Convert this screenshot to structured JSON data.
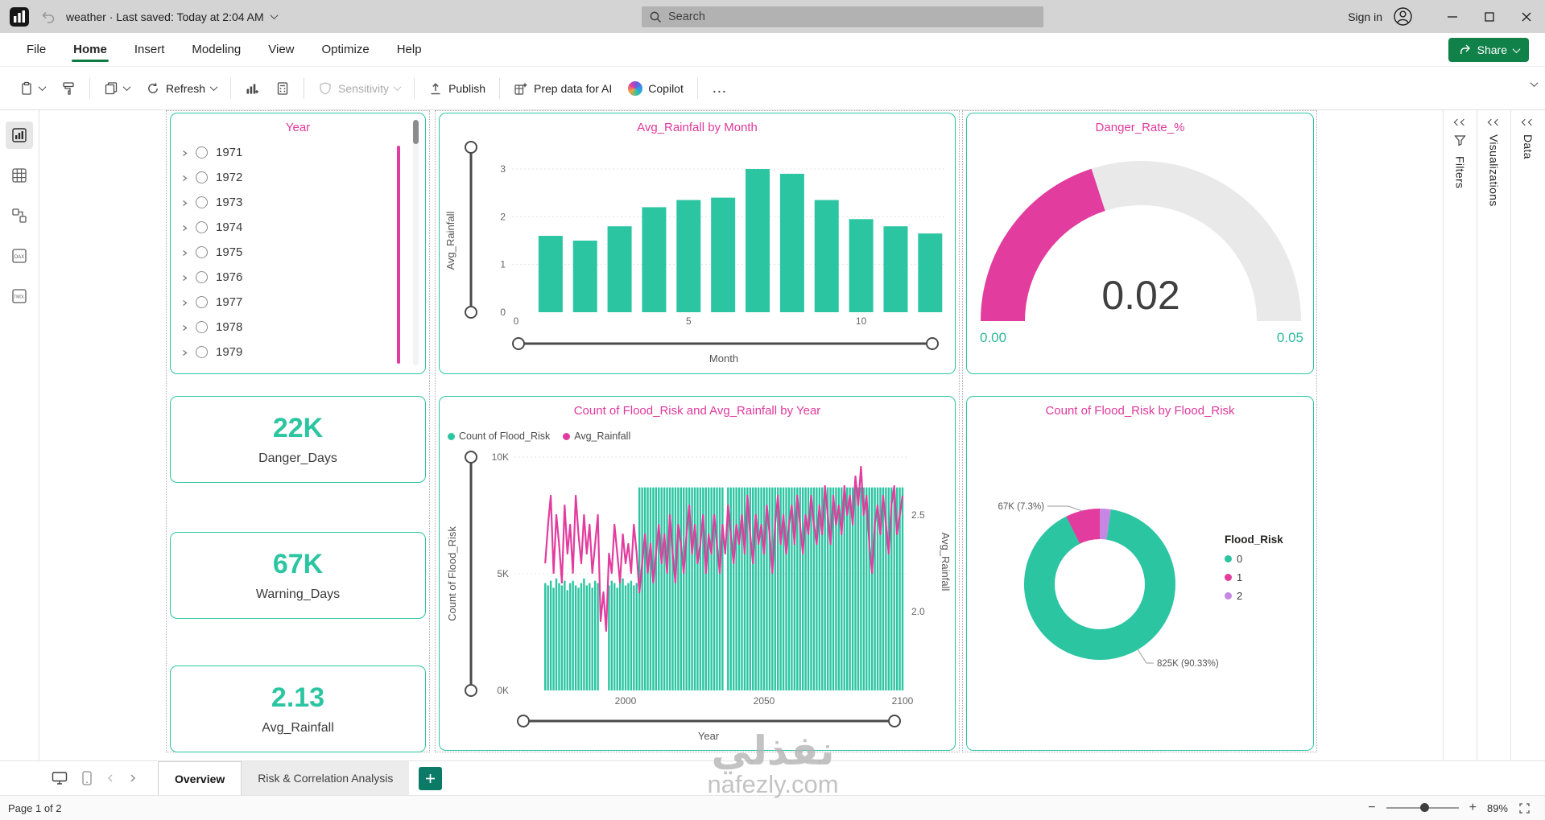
{
  "app": {
    "doc_title": "weather · Last saved: Today at 2:04 AM",
    "search_placeholder": "Search",
    "sign_in_label": "Sign in",
    "menu_items": [
      "File",
      "Home",
      "Insert",
      "Modeling",
      "View",
      "Optimize",
      "Help"
    ],
    "active_menu": "Home",
    "share_label": "Share",
    "toolbar": {
      "refresh_label": "Refresh",
      "sensitivity_label": "Sensitivity",
      "publish_label": "Publish",
      "prep_label": "Prep data for AI",
      "copilot_label": "Copilot",
      "more_label": "…"
    },
    "rail_dax_label": "DAX",
    "rail_tmdl_label": "TMDL",
    "right_panes": [
      "Filters",
      "Visualizations",
      "Data"
    ],
    "pages": {
      "tabs": [
        "Overview",
        "Risk & Correlation Analysis"
      ],
      "active": "Overview",
      "add_label": "+"
    },
    "status": {
      "page_label": "Page 1 of 2",
      "zoom_label": "89%"
    }
  },
  "colors": {
    "teal": "#2CC5A2",
    "magenta": "#E23C9E",
    "purple": "#C687E3",
    "title_pink": "#E0399B",
    "gauge_axis": "#2CB79A",
    "share_green": "#11814A"
  },
  "slicer": {
    "title": "Year",
    "items": [
      "1971",
      "1972",
      "1973",
      "1974",
      "1975",
      "1976",
      "1977",
      "1978",
      "1979"
    ]
  },
  "cards": [
    {
      "value": "22K",
      "label": "Danger_Days"
    },
    {
      "value": "67K",
      "label": "Warning_Days"
    },
    {
      "value": "2.13",
      "label": "Avg_Rainfall"
    }
  ],
  "watermark": {
    "arabic": "نفذلي",
    "latin": "nafezly.com"
  },
  "chart_data": [
    {
      "id": "rainfall_by_month",
      "type": "bar",
      "title": "Avg_Rainfall by Month",
      "xlabel": "Month",
      "ylabel": "Avg_Rainfall",
      "x": [
        1,
        2,
        3,
        4,
        5,
        6,
        7,
        8,
        9,
        10,
        11,
        12
      ],
      "values": [
        1.6,
        1.5,
        1.8,
        2.2,
        2.35,
        2.4,
        3.0,
        2.9,
        2.35,
        1.95,
        1.8,
        1.65
      ],
      "x_ticks": [
        0,
        5,
        10
      ],
      "y_ticks": [
        0,
        1,
        2,
        3
      ],
      "ylim": [
        0,
        3
      ],
      "grid": true,
      "bar_color": "#2CC5A2"
    },
    {
      "id": "danger_rate",
      "type": "gauge",
      "title": "Danger_Rate_%",
      "value": 0.02,
      "min": 0,
      "max": 0.05,
      "value_label": "0.02",
      "min_label": "0.00",
      "max_label": "0.05",
      "fill_color": "#E23C9E"
    },
    {
      "id": "flood_by_year",
      "type": "combo",
      "title": "Count of Flood_Risk and Avg_Rainfall by Year",
      "legend": [
        "Count of Flood_Risk",
        "Avg_Rainfall"
      ],
      "legend_position": "top-left",
      "xlabel": "Year",
      "y1label": "Count of Flood_Risk",
      "y2label": "Avg_Rainfall",
      "y1_ticks": [
        {
          "label": "0K",
          "v": 0
        },
        {
          "label": "5K",
          "v": 5000
        },
        {
          "label": "10K",
          "v": 10000
        }
      ],
      "y2_ticks": [
        {
          "label": "2.0",
          "v": 2.0
        },
        {
          "label": "2.5",
          "v": 2.5
        }
      ],
      "x_ticks": [
        {
          "label": "2000",
          "v": 2000
        },
        {
          "label": "2050",
          "v": 2050
        },
        {
          "label": "2100",
          "v": 2100
        }
      ],
      "y1lim": [
        0,
        10000
      ],
      "y2lim": [
        1.8,
        2.8
      ],
      "year_start": 1971,
      "year_end": 2100,
      "bar_color": "#2CC5A2",
      "line_color": "#E23C9E",
      "counts": [
        4600,
        4500,
        4700,
        4400,
        4800,
        4600,
        4500,
        4700,
        4300,
        4600,
        4700,
        4500,
        4400,
        4600,
        4800,
        4500,
        4600,
        4400,
        4700,
        4600,
        0,
        0,
        0,
        4500,
        4700,
        4600,
        4400,
        4600,
        4800,
        4500,
        4600,
        4700,
        4500,
        4600,
        8700,
        8700,
        8700,
        8700,
        8700,
        8700,
        8700,
        8700,
        8700,
        8700,
        8700,
        8700,
        8700,
        8700,
        8700,
        8700,
        8700,
        8700,
        8700,
        8700,
        8700,
        8700,
        8700,
        8700,
        8700,
        8700,
        8700,
        8700,
        8700,
        8700,
        8700,
        0,
        8700,
        8700,
        8700,
        8700,
        8700,
        8700,
        8700,
        8700,
        8700,
        8700,
        8700,
        8700,
        8700,
        8700,
        8700,
        8700,
        8700,
        8700,
        8700,
        8700,
        8700,
        8700,
        8700,
        8700,
        8700,
        8700,
        8700,
        8700,
        8700,
        8700,
        8700,
        8700,
        8700,
        8700,
        8700,
        8700,
        8700,
        8700,
        8700,
        8700,
        8700,
        8700,
        8700,
        8700,
        8700,
        8700,
        8700,
        8700,
        8700,
        8700,
        8700,
        8700,
        8700,
        8700,
        8700,
        8700,
        8700,
        8700,
        8700,
        8700,
        8700,
        8700,
        8700,
        8700
      ],
      "rainfall": [
        2.25,
        2.45,
        2.6,
        2.2,
        2.5,
        2.35,
        2.15,
        2.55,
        2.3,
        2.45,
        2.2,
        2.6,
        2.4,
        2.25,
        2.5,
        2.3,
        2.45,
        2.2,
        2.35,
        2.5,
        1.95,
        2.1,
        1.9,
        2.3,
        2.2,
        2.45,
        2.3,
        2.15,
        2.4,
        2.25,
        2.35,
        2.2,
        2.45,
        2.3,
        2.1,
        2.25,
        2.4,
        2.2,
        2.35,
        2.15,
        2.3,
        2.45,
        2.25,
        2.4,
        2.2,
        2.5,
        2.3,
        2.15,
        2.45,
        2.35,
        2.2,
        2.4,
        2.55,
        2.3,
        2.45,
        2.25,
        2.35,
        2.5,
        2.2,
        2.4,
        2.3,
        2.5,
        2.35,
        2.2,
        2.45,
        2.3,
        2.55,
        2.4,
        2.25,
        2.45,
        2.35,
        2.5,
        2.3,
        2.6,
        2.4,
        2.25,
        2.5,
        2.35,
        2.45,
        2.3,
        2.55,
        2.4,
        2.2,
        2.45,
        2.6,
        2.35,
        2.5,
        2.3,
        2.45,
        2.55,
        2.35,
        2.6,
        2.45,
        2.3,
        2.5,
        2.4,
        2.6,
        2.45,
        2.35,
        2.55,
        2.4,
        2.65,
        2.5,
        2.35,
        2.6,
        2.45,
        2.55,
        2.4,
        2.65,
        2.5,
        2.6,
        2.45,
        2.7,
        2.55,
        2.75,
        2.5,
        2.6,
        2.35,
        2.2,
        2.45,
        2.55,
        2.4,
        2.6,
        2.45,
        2.3,
        2.55,
        2.65,
        2.4,
        2.5,
        2.6
      ]
    },
    {
      "id": "flood_risk_donut",
      "type": "donut",
      "title": "Count of Flood_Risk by Flood_Risk",
      "legend_title": "Flood_Risk",
      "slices": [
        {
          "label": "0",
          "value": 825000,
          "pct": 90.33,
          "display": "825K (90.33%)",
          "color": "#2CC5A2"
        },
        {
          "label": "1",
          "value": 67000,
          "pct": 7.3,
          "display": "67K (7.3%)",
          "color": "#E23C9E"
        },
        {
          "label": "2",
          "value": null,
          "pct": 2.37,
          "display": "",
          "color": "#C687E3"
        }
      ]
    }
  ]
}
